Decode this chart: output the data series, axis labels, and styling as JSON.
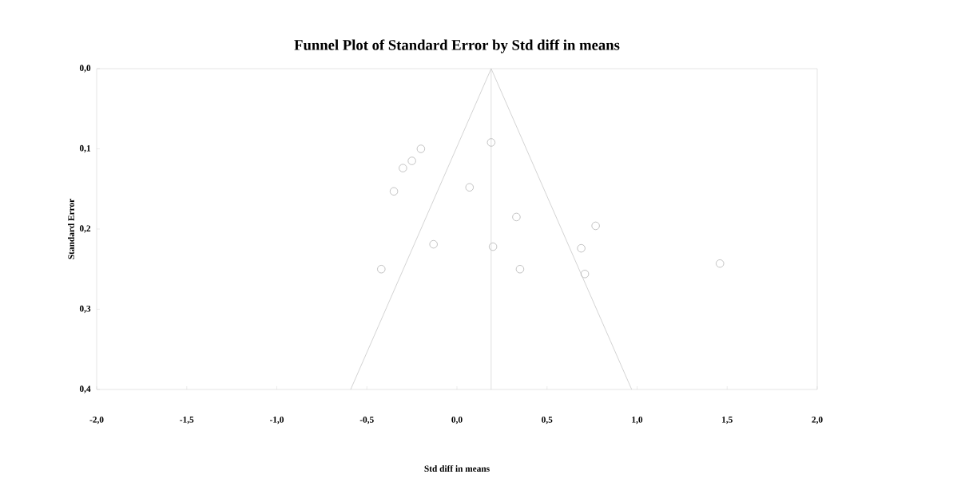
{
  "chart_data": {
    "type": "scatter",
    "title": "Funnel Plot of Standard Error by Std diff in means",
    "xlabel": "Std diff in means",
    "ylabel": "Standard Error",
    "xlim": [
      -2.0,
      2.0
    ],
    "ylim": [
      0.4,
      0.0
    ],
    "xticks": [
      {
        "value": -2.0,
        "label": "-2,0"
      },
      {
        "value": -1.5,
        "label": "-1,5"
      },
      {
        "value": -1.0,
        "label": "-1,0"
      },
      {
        "value": -0.5,
        "label": "-0,5"
      },
      {
        "value": 0.0,
        "label": "0,0"
      },
      {
        "value": 0.5,
        "label": "0,5"
      },
      {
        "value": 1.0,
        "label": "1,0"
      },
      {
        "value": 1.5,
        "label": "1,5"
      },
      {
        "value": 2.0,
        "label": "2,0"
      }
    ],
    "yticks": [
      {
        "value": 0.0,
        "label": "0,0"
      },
      {
        "value": 0.1,
        "label": "0,1"
      },
      {
        "value": 0.2,
        "label": "0,2"
      },
      {
        "value": 0.3,
        "label": "0,3"
      },
      {
        "value": 0.4,
        "label": "0,4"
      }
    ],
    "grid": false,
    "marker": "circle",
    "ref_lines": [
      {
        "axis": "x",
        "value": 0.19,
        "color": "#c8c8c8"
      }
    ],
    "series": [
      {
        "type": "line",
        "marker": "none",
        "color": "#c8c8c8",
        "x": [
          -0.59,
          0.19,
          0.97
        ],
        "values": [
          0.4,
          0.0,
          0.4
        ]
      },
      {
        "color": "#b4b4b4",
        "x": [
          -0.2,
          -0.25,
          -0.3,
          -0.35,
          -0.42,
          -0.13,
          0.07,
          0.19,
          0.2,
          0.33,
          0.35,
          0.77,
          0.69,
          0.71,
          1.46
        ],
        "values": [
          0.1,
          0.115,
          0.124,
          0.153,
          0.25,
          0.219,
          0.148,
          0.092,
          0.222,
          0.185,
          0.25,
          0.196,
          0.224,
          0.256,
          0.243
        ]
      }
    ]
  }
}
